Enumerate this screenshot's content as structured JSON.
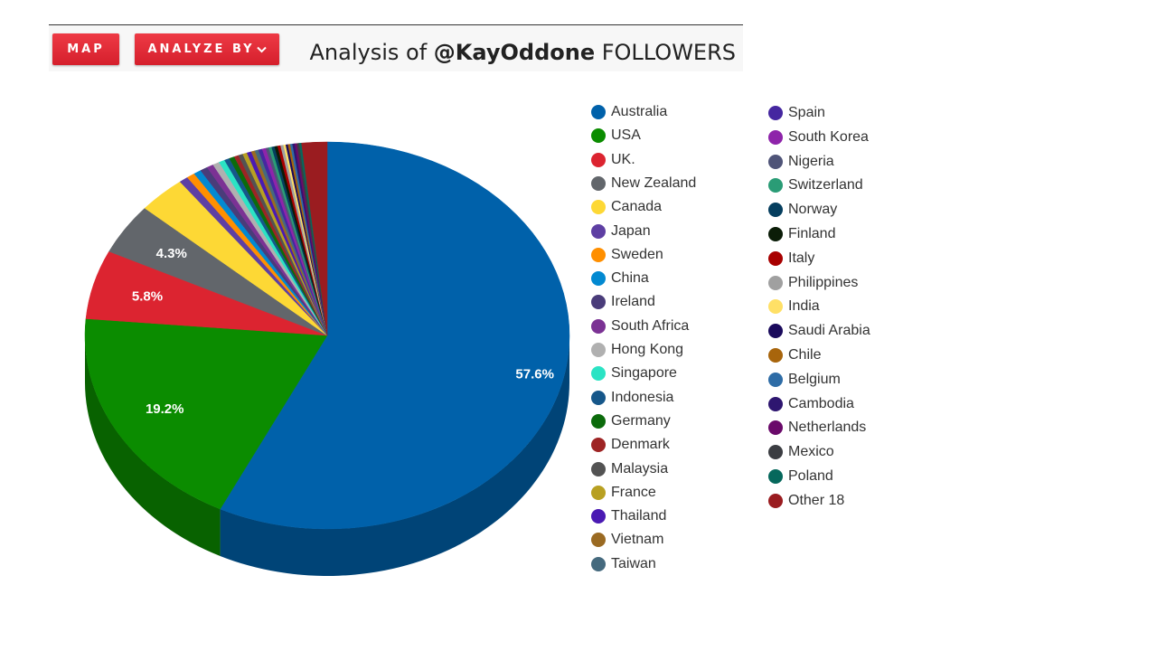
{
  "toolbar": {
    "map_label": "MAP",
    "analyze_label": "ANALYZE BY",
    "title_prefix": "Analysis of ",
    "title_handle": "@KayOddone",
    "title_suffix": " FOLLOWERS",
    "button_color": "#e02a36"
  },
  "chart_data": {
    "type": "pie",
    "title": "Analysis of @KayOddone FOLLOWERS",
    "three_d": true,
    "legend_position": "right",
    "data_labels": [
      "57.6%",
      "19.2%",
      "5.8%",
      "4.3%"
    ],
    "slices": [
      {
        "name": "Australia",
        "value": 57.6,
        "color": "#0061aa"
      },
      {
        "name": "USA",
        "value": 19.2,
        "color": "#0b8c00"
      },
      {
        "name": "UK.",
        "value": 5.8,
        "color": "#dc2430"
      },
      {
        "name": "New Zealand",
        "value": 4.3,
        "color": "#62666b"
      },
      {
        "name": "Canada",
        "value": 3.2,
        "color": "#fdd835"
      },
      {
        "name": "Japan",
        "value": 0.6,
        "color": "#5e3fa3"
      },
      {
        "name": "Sweden",
        "value": 0.55,
        "color": "#ff8f00"
      },
      {
        "name": "China",
        "value": 0.5,
        "color": "#0289d1"
      },
      {
        "name": "Ireland",
        "value": 0.5,
        "color": "#4a3c7a"
      },
      {
        "name": "South Africa",
        "value": 0.45,
        "color": "#7b3294"
      },
      {
        "name": "Hong Kong",
        "value": 0.45,
        "color": "#b0b0b0"
      },
      {
        "name": "Singapore",
        "value": 0.4,
        "color": "#2be3c4"
      },
      {
        "name": "Indonesia",
        "value": 0.35,
        "color": "#16578a"
      },
      {
        "name": "Germany",
        "value": 0.35,
        "color": "#0c6b0c"
      },
      {
        "name": "Denmark",
        "value": 0.3,
        "color": "#9e2424"
      },
      {
        "name": "Malaysia",
        "value": 0.3,
        "color": "#535353"
      },
      {
        "name": "France",
        "value": 0.3,
        "color": "#b8a022"
      },
      {
        "name": "Thailand",
        "value": 0.3,
        "color": "#4a1ab3"
      },
      {
        "name": "Vietnam",
        "value": 0.25,
        "color": "#9a6a22"
      },
      {
        "name": "Taiwan",
        "value": 0.25,
        "color": "#456a7e"
      },
      {
        "name": "Spain",
        "value": 0.25,
        "color": "#4527a0"
      },
      {
        "name": "South Korea",
        "value": 0.25,
        "color": "#8e24aa"
      },
      {
        "name": "Nigeria",
        "value": 0.2,
        "color": "#4f5478"
      },
      {
        "name": "Switzerland",
        "value": 0.2,
        "color": "#2a9c76"
      },
      {
        "name": "Norway",
        "value": 0.2,
        "color": "#053e5e"
      },
      {
        "name": "Finland",
        "value": 0.2,
        "color": "#0b1d08"
      },
      {
        "name": "Italy",
        "value": 0.2,
        "color": "#a80000"
      },
      {
        "name": "Philippines",
        "value": 0.2,
        "color": "#a0a0a0"
      },
      {
        "name": "India",
        "value": 0.15,
        "color": "#ffe066"
      },
      {
        "name": "Saudi Arabia",
        "value": 0.15,
        "color": "#1a0a5c"
      },
      {
        "name": "Chile",
        "value": 0.15,
        "color": "#a8650c"
      },
      {
        "name": "Belgium",
        "value": 0.15,
        "color": "#2e6ca6"
      },
      {
        "name": "Cambodia",
        "value": 0.15,
        "color": "#2e1670"
      },
      {
        "name": "Netherlands",
        "value": 0.15,
        "color": "#6a0a6a"
      },
      {
        "name": "Mexico",
        "value": 0.15,
        "color": "#3b3d42"
      },
      {
        "name": "Poland",
        "value": 0.15,
        "color": "#06685c"
      },
      {
        "name": "Other 18",
        "value": 1.7,
        "color": "#9a1c20"
      }
    ]
  }
}
